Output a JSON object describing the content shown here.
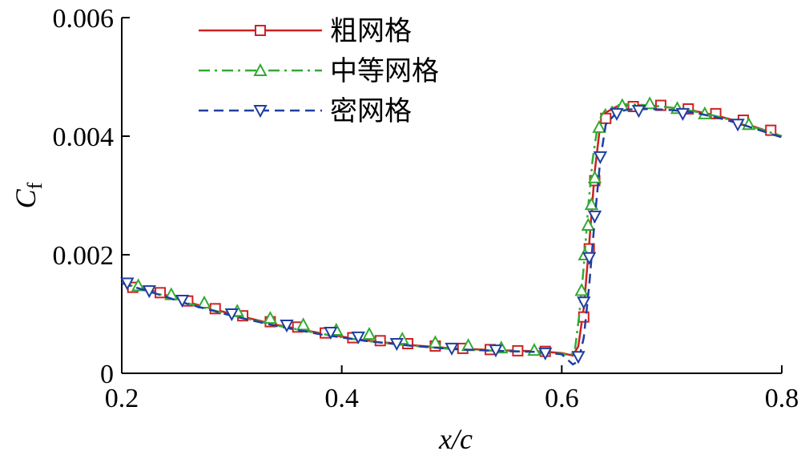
{
  "chart_data": {
    "type": "line",
    "xlabel": "x/c",
    "ylabel_main": "C",
    "ylabel_sub": "f",
    "xlim": [
      0.2,
      0.8
    ],
    "ylim": [
      0,
      0.006
    ],
    "x_ticks": [
      0.2,
      0.4,
      0.6,
      0.8
    ],
    "x_tick_labels": [
      "0.2",
      "0.4",
      "0.6",
      "0.8"
    ],
    "y_ticks": [
      0,
      0.002,
      0.004,
      0.006
    ],
    "y_tick_labels": [
      "0",
      "0.002",
      "0.004",
      "0.006"
    ],
    "legend_position": "top-center",
    "series": [
      {
        "name": "粗网格",
        "color": "#cc2222",
        "dash": "solid",
        "marker": "square",
        "x": [
          0.2,
          0.23,
          0.26,
          0.3,
          0.34,
          0.38,
          0.42,
          0.46,
          0.5,
          0.54,
          0.58,
          0.6,
          0.61,
          0.615,
          0.62,
          0.625,
          0.63,
          0.635,
          0.64,
          0.65,
          0.66,
          0.68,
          0.7,
          0.72,
          0.74,
          0.76,
          0.78,
          0.8
        ],
        "y": [
          0.00155,
          0.00138,
          0.0012,
          0.001,
          0.00082,
          0.00068,
          0.00056,
          0.00048,
          0.00042,
          0.00039,
          0.00037,
          0.00034,
          0.0003,
          0.00045,
          0.0011,
          0.0022,
          0.0034,
          0.0042,
          0.0044,
          0.0045,
          0.00452,
          0.00452,
          0.00448,
          0.00443,
          0.00435,
          0.00425,
          0.00413,
          0.004
        ],
        "marker_x": [
          0.21,
          0.235,
          0.26,
          0.285,
          0.31,
          0.335,
          0.36,
          0.385,
          0.41,
          0.435,
          0.46,
          0.485,
          0.51,
          0.535,
          0.56,
          0.585,
          0.62,
          0.625,
          0.63,
          0.64,
          0.665,
          0.69,
          0.715,
          0.74,
          0.765,
          0.79
        ],
        "marker_y": [
          0.00145,
          0.00136,
          0.00122,
          0.00109,
          0.00097,
          0.00087,
          0.00078,
          0.00068,
          0.0006,
          0.00055,
          0.0005,
          0.00046,
          0.00042,
          0.0004,
          0.00038,
          0.00037,
          0.00095,
          0.0021,
          0.00325,
          0.0043,
          0.0045,
          0.00452,
          0.00446,
          0.00438,
          0.00427,
          0.0041
        ]
      },
      {
        "name": "中等网格",
        "color": "#33aa33",
        "dash": "dashdot",
        "marker": "triangle-up",
        "x": [
          0.2,
          0.23,
          0.26,
          0.3,
          0.34,
          0.38,
          0.42,
          0.46,
          0.5,
          0.54,
          0.58,
          0.6,
          0.608,
          0.612,
          0.616,
          0.62,
          0.624,
          0.628,
          0.632,
          0.636,
          0.64,
          0.65,
          0.66,
          0.68,
          0.7,
          0.72,
          0.74,
          0.76,
          0.78,
          0.8
        ],
        "y": [
          0.00153,
          0.00136,
          0.00118,
          0.00098,
          0.00081,
          0.00067,
          0.00055,
          0.00047,
          0.00041,
          0.00038,
          0.00036,
          0.00033,
          0.0003,
          0.0004,
          0.001,
          0.0018,
          0.0028,
          0.0036,
          0.0041,
          0.00435,
          0.00445,
          0.00452,
          0.00454,
          0.00452,
          0.00448,
          0.00442,
          0.00434,
          0.00424,
          0.00412,
          0.004
        ],
        "marker_x": [
          0.215,
          0.245,
          0.275,
          0.305,
          0.335,
          0.365,
          0.395,
          0.425,
          0.455,
          0.485,
          0.515,
          0.545,
          0.575,
          0.618,
          0.621,
          0.624,
          0.627,
          0.63,
          0.634,
          0.655,
          0.68,
          0.705,
          0.73,
          0.77
        ],
        "marker_y": [
          0.00148,
          0.00133,
          0.00119,
          0.00105,
          0.00093,
          0.00082,
          0.00073,
          0.00066,
          0.00058,
          0.00052,
          0.00047,
          0.00043,
          0.00039,
          0.0014,
          0.002,
          0.0025,
          0.00285,
          0.0033,
          0.00415,
          0.00452,
          0.00455,
          0.00447,
          0.00438,
          0.0042
        ]
      },
      {
        "name": "密网格",
        "color": "#1f3fa0",
        "dash": "dashed",
        "marker": "triangle-down",
        "x": [
          0.2,
          0.23,
          0.26,
          0.3,
          0.34,
          0.38,
          0.42,
          0.46,
          0.5,
          0.54,
          0.58,
          0.6,
          0.61,
          0.615,
          0.62,
          0.625,
          0.63,
          0.635,
          0.64,
          0.65,
          0.66,
          0.68,
          0.7,
          0.72,
          0.74,
          0.76,
          0.78,
          0.8
        ],
        "y": [
          0.00152,
          0.00135,
          0.00117,
          0.00097,
          0.0008,
          0.00066,
          0.00055,
          0.00047,
          0.00041,
          0.00038,
          0.00036,
          0.00032,
          0.00015,
          0.0002,
          0.0006,
          0.0015,
          0.0026,
          0.0036,
          0.0042,
          0.0044,
          0.00445,
          0.00446,
          0.00444,
          0.0044,
          0.00432,
          0.00422,
          0.0041,
          0.00398
        ],
        "marker_x": [
          0.205,
          0.225,
          0.255,
          0.3,
          0.35,
          0.39,
          0.415,
          0.45,
          0.5,
          0.54,
          0.585,
          0.615,
          0.62,
          0.625,
          0.63,
          0.635,
          0.65,
          0.67,
          0.71,
          0.76
        ],
        "marker_y": [
          0.00152,
          0.00139,
          0.00123,
          0.001,
          0.00081,
          0.00069,
          0.00061,
          0.0005,
          0.00042,
          0.00039,
          0.00034,
          0.00028,
          0.0012,
          0.00195,
          0.00265,
          0.00365,
          0.00438,
          0.00443,
          0.00438,
          0.0042
        ]
      }
    ]
  }
}
